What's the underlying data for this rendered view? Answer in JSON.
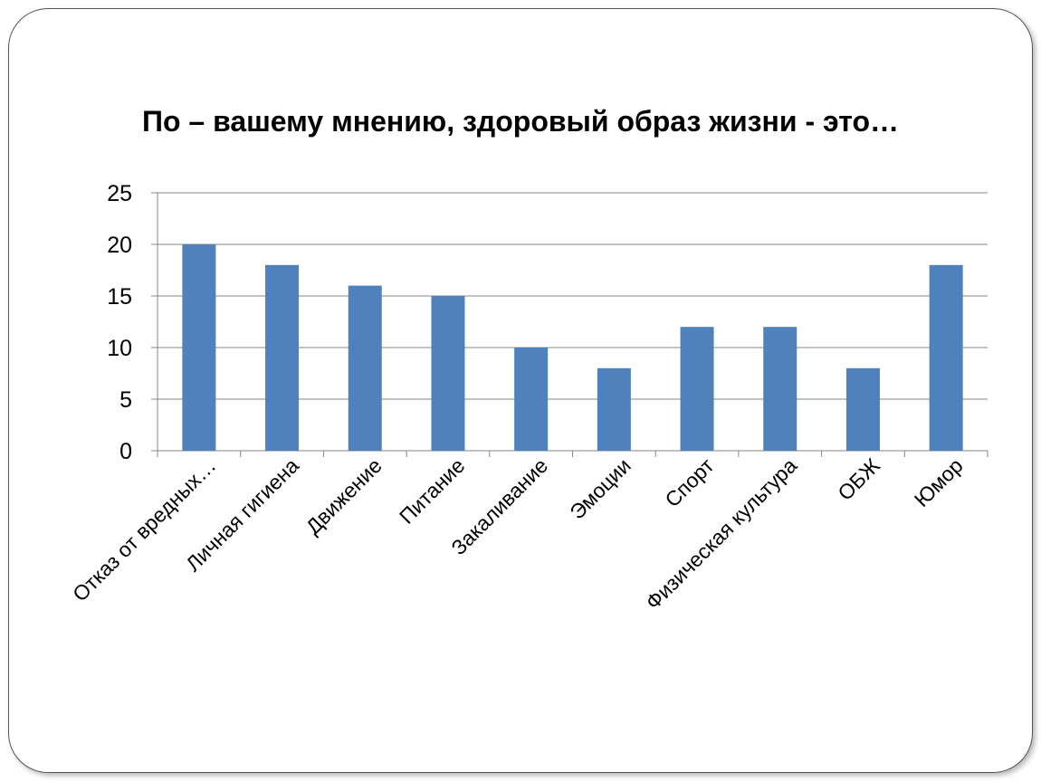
{
  "chart_data": {
    "type": "bar",
    "title": "По – вашему мнению, здоровый образ жизни - это…",
    "categories": [
      "Отказ от вредных…",
      "Личная гигиена",
      "Движение",
      "Питание",
      "Закаливание",
      "Эмоции",
      "Спорт",
      "Физическая культура",
      "ОБЖ",
      "Юмор"
    ],
    "values": [
      20,
      18,
      16,
      15,
      10,
      8,
      12,
      12,
      8,
      18
    ],
    "ylim": [
      0,
      25
    ],
    "yticks": [
      0,
      5,
      10,
      15,
      20,
      25
    ],
    "grid": true,
    "legend": "none",
    "bar_color": "#4F81BD"
  }
}
